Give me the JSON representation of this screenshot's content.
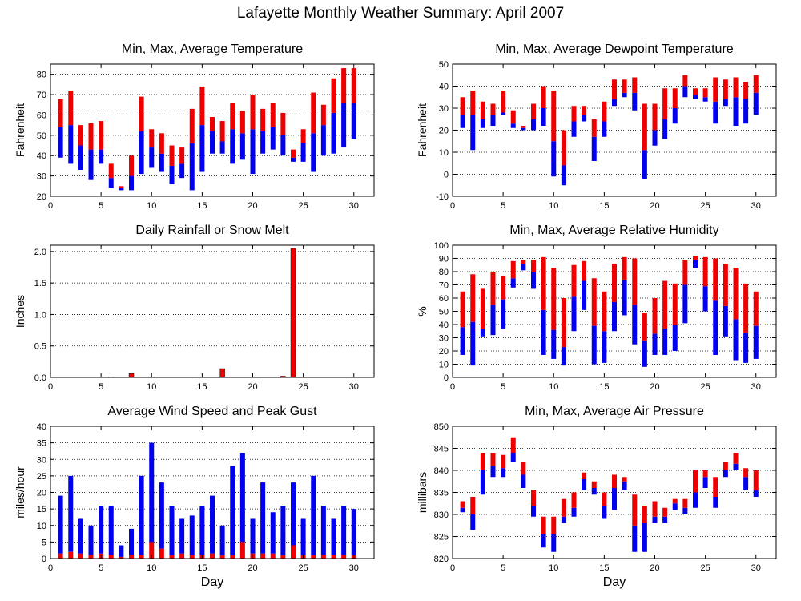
{
  "title": "Lafayette Monthly Weather Summary: April 2007",
  "colors": {
    "min_to_avg": "#0000ee",
    "avg_to_max": "#ee0000",
    "frame": "#000000",
    "grid": "#000000"
  },
  "chart_data": [
    {
      "type": "bar",
      "subtype": "floating-range",
      "title": "Min, Max, Average Temperature",
      "xlabel": "",
      "ylabel": "Fahrenheit",
      "xlim": [
        0,
        32
      ],
      "ylim": [
        20,
        85
      ],
      "xticks": [
        0,
        5,
        10,
        15,
        20,
        25,
        30
      ],
      "yticks": [
        20,
        30,
        40,
        50,
        60,
        70,
        80
      ],
      "grid": true,
      "days": [
        1,
        2,
        3,
        4,
        5,
        6,
        7,
        8,
        9,
        10,
        11,
        12,
        13,
        14,
        15,
        16,
        17,
        18,
        19,
        20,
        21,
        22,
        23,
        24,
        25,
        26,
        27,
        28,
        29,
        30
      ],
      "min": [
        39,
        36,
        33,
        28,
        36,
        24,
        23,
        23,
        31,
        34,
        32,
        26,
        29,
        23,
        32,
        41,
        41,
        36,
        38,
        31,
        41,
        43,
        40,
        37,
        37,
        32,
        40,
        41,
        44,
        48
      ],
      "avg": [
        54,
        55,
        45,
        43,
        43,
        29,
        24,
        30,
        52,
        44,
        41,
        35,
        36,
        46,
        55,
        52,
        47,
        53,
        51,
        53,
        52,
        54,
        50,
        39,
        46,
        51,
        55,
        61,
        66,
        66
      ],
      "max": [
        68,
        72,
        55,
        56,
        57,
        36,
        25,
        40,
        69,
        53,
        51,
        45,
        44,
        63,
        74,
        59,
        57,
        66,
        62,
        70,
        63,
        66,
        61,
        43,
        53,
        71,
        65,
        78,
        83,
        83
      ]
    },
    {
      "type": "bar",
      "subtype": "floating-range",
      "title": "Min, Max, Average Dewpoint Temperature",
      "xlabel": "",
      "ylabel": "Fahrenheit",
      "xlim": [
        0,
        32
      ],
      "ylim": [
        -10,
        50
      ],
      "xticks": [
        0,
        5,
        10,
        15,
        20,
        25,
        30
      ],
      "yticks": [
        -10,
        0,
        10,
        20,
        30,
        40,
        50
      ],
      "grid": true,
      "days": [
        1,
        2,
        3,
        4,
        5,
        6,
        7,
        8,
        9,
        10,
        11,
        12,
        13,
        14,
        15,
        16,
        17,
        18,
        19,
        20,
        21,
        22,
        23,
        24,
        25,
        26,
        27,
        28,
        29,
        30
      ],
      "min": [
        21,
        11,
        21,
        22,
        27,
        21,
        20,
        20,
        22,
        -1,
        -5,
        17,
        24,
        6,
        17,
        31,
        35,
        29,
        -2,
        13,
        16,
        23,
        35,
        34,
        33,
        23,
        31,
        22,
        23,
        27
      ],
      "avg": [
        27,
        27,
        25,
        27,
        28,
        23,
        21,
        25,
        30,
        15,
        4,
        24,
        27,
        17,
        24,
        34,
        37,
        37,
        11,
        20,
        25,
        30,
        40,
        36,
        35,
        33,
        34,
        35,
        34,
        37
      ],
      "max": [
        35,
        38,
        33,
        32,
        38,
        29,
        22,
        32,
        40,
        38,
        20,
        31,
        31,
        25,
        33,
        43,
        43,
        44,
        32,
        32,
        39,
        39,
        45,
        39,
        39,
        44,
        43,
        44,
        42,
        45
      ]
    },
    {
      "type": "bar",
      "title": "Daily Rainfall or Snow Melt",
      "xlabel": "",
      "ylabel": "Inches",
      "xlim": [
        0,
        32
      ],
      "ylim": [
        0,
        2.1
      ],
      "xticks": [
        0,
        5,
        10,
        15,
        20,
        25,
        30
      ],
      "yticks": [
        0.0,
        0.5,
        1.0,
        1.5,
        2.0
      ],
      "ytick_labels": [
        "0.0",
        "0.5",
        "1.0",
        "1.5",
        "2.0"
      ],
      "grid": true,
      "days": [
        1,
        2,
        3,
        4,
        5,
        6,
        7,
        8,
        9,
        10,
        11,
        12,
        13,
        14,
        15,
        16,
        17,
        18,
        19,
        20,
        21,
        22,
        23,
        24,
        25,
        26,
        27,
        28,
        29,
        30
      ],
      "values": [
        0,
        0,
        0,
        0,
        0,
        0.01,
        0,
        0.06,
        0,
        0.01,
        0,
        0,
        0,
        0,
        0,
        0,
        0.14,
        0,
        0,
        0,
        0,
        0,
        0.02,
        2.05,
        0,
        0,
        0,
        0,
        0,
        0
      ]
    },
    {
      "type": "bar",
      "subtype": "floating-range",
      "title": "Min, Max, Average Relative Humidity",
      "xlabel": "",
      "ylabel": "%",
      "xlim": [
        0,
        32
      ],
      "ylim": [
        0,
        100
      ],
      "xticks": [
        0,
        5,
        10,
        15,
        20,
        25,
        30
      ],
      "yticks": [
        0,
        10,
        20,
        30,
        40,
        50,
        60,
        70,
        80,
        90,
        100
      ],
      "grid": true,
      "days": [
        1,
        2,
        3,
        4,
        5,
        6,
        7,
        8,
        9,
        10,
        11,
        12,
        13,
        14,
        15,
        16,
        17,
        18,
        19,
        20,
        21,
        22,
        23,
        24,
        25,
        26,
        27,
        28,
        29,
        30
      ],
      "min": [
        17,
        9,
        31,
        32,
        37,
        68,
        81,
        67,
        17,
        14,
        9,
        35,
        51,
        10,
        11,
        35,
        47,
        25,
        8,
        17,
        17,
        20,
        41,
        83,
        50,
        17,
        31,
        13,
        11,
        14
      ],
      "avg": [
        38,
        42,
        37,
        55,
        59,
        75,
        86,
        80,
        51,
        36,
        23,
        61,
        73,
        39,
        35,
        57,
        74,
        55,
        28,
        33,
        37,
        40,
        70,
        89,
        69,
        58,
        54,
        44,
        34,
        39
      ],
      "max": [
        65,
        78,
        67,
        80,
        77,
        88,
        89,
        89,
        91,
        83,
        60,
        85,
        88,
        75,
        65,
        86,
        91,
        90,
        49,
        60,
        73,
        71,
        89,
        92,
        91,
        90,
        86,
        83,
        71,
        65
      ]
    },
    {
      "type": "bar",
      "subtype": "stacked",
      "title": "Average Wind Speed and Peak Gust",
      "xlabel": "Day",
      "ylabel": "miles/hour",
      "xlim": [
        0,
        32
      ],
      "ylim": [
        0,
        40
      ],
      "xticks": [
        0,
        5,
        10,
        15,
        20,
        25,
        30
      ],
      "yticks": [
        0,
        5,
        10,
        15,
        20,
        25,
        30,
        35,
        40
      ],
      "grid": true,
      "days": [
        1,
        2,
        3,
        4,
        5,
        6,
        7,
        8,
        9,
        10,
        11,
        12,
        13,
        14,
        15,
        16,
        17,
        18,
        19,
        20,
        21,
        22,
        23,
        24,
        25,
        26,
        27,
        28,
        29,
        30
      ],
      "average": [
        1.5,
        2,
        1.5,
        1,
        1.5,
        1,
        0.5,
        1,
        1,
        5,
        3,
        1,
        1.5,
        1,
        1,
        1.5,
        1,
        1,
        5,
        1.5,
        1.5,
        1.5,
        1,
        4,
        1,
        1,
        1,
        1,
        1,
        1
      ],
      "peak_gust": [
        19,
        25,
        12,
        10,
        16,
        16,
        4,
        9,
        25,
        35,
        23,
        16,
        12,
        13,
        16,
        19,
        10,
        28,
        32,
        12,
        23,
        14,
        16,
        23,
        12,
        25,
        16,
        12,
        16,
        15
      ]
    },
    {
      "type": "bar",
      "subtype": "floating-range",
      "title": "Min, Max, Average Air Pressure",
      "xlabel": "Day",
      "ylabel": "millibars",
      "xlim": [
        0,
        32
      ],
      "ylim": [
        820,
        850
      ],
      "xticks": [
        0,
        5,
        10,
        15,
        20,
        25,
        30
      ],
      "yticks": [
        820,
        825,
        830,
        835,
        840,
        845,
        850
      ],
      "grid": true,
      "days": [
        1,
        2,
        3,
        4,
        5,
        6,
        7,
        8,
        9,
        10,
        11,
        12,
        13,
        14,
        15,
        16,
        17,
        18,
        19,
        20,
        21,
        22,
        23,
        24,
        25,
        26,
        27,
        28,
        29,
        30
      ],
      "min": [
        830.5,
        826.5,
        834.5,
        838.5,
        838.5,
        842,
        836,
        829.5,
        822.5,
        821.5,
        828,
        829.5,
        835.5,
        834.5,
        829,
        831,
        835.5,
        821.5,
        821.5,
        828,
        828,
        831,
        830,
        831.5,
        836,
        831.5,
        838.5,
        840,
        835.5,
        834
      ],
      "avg": [
        831.5,
        830,
        840,
        841,
        840.5,
        844,
        839,
        832,
        825.5,
        825.5,
        829.5,
        831.5,
        838,
        836,
        832,
        836,
        837.5,
        827.5,
        828,
        829.5,
        829.5,
        832.5,
        831.5,
        835,
        838.5,
        834,
        840,
        841.5,
        838.5,
        835.5
      ],
      "max": [
        833,
        834,
        844,
        844,
        843.5,
        847.5,
        842,
        835.5,
        829.5,
        829.5,
        833.5,
        835,
        839.5,
        837.5,
        835,
        839,
        838.5,
        834.5,
        832,
        833,
        831.5,
        833.5,
        833.5,
        840,
        840,
        838.5,
        842,
        844,
        840.5,
        840
      ]
    }
  ]
}
